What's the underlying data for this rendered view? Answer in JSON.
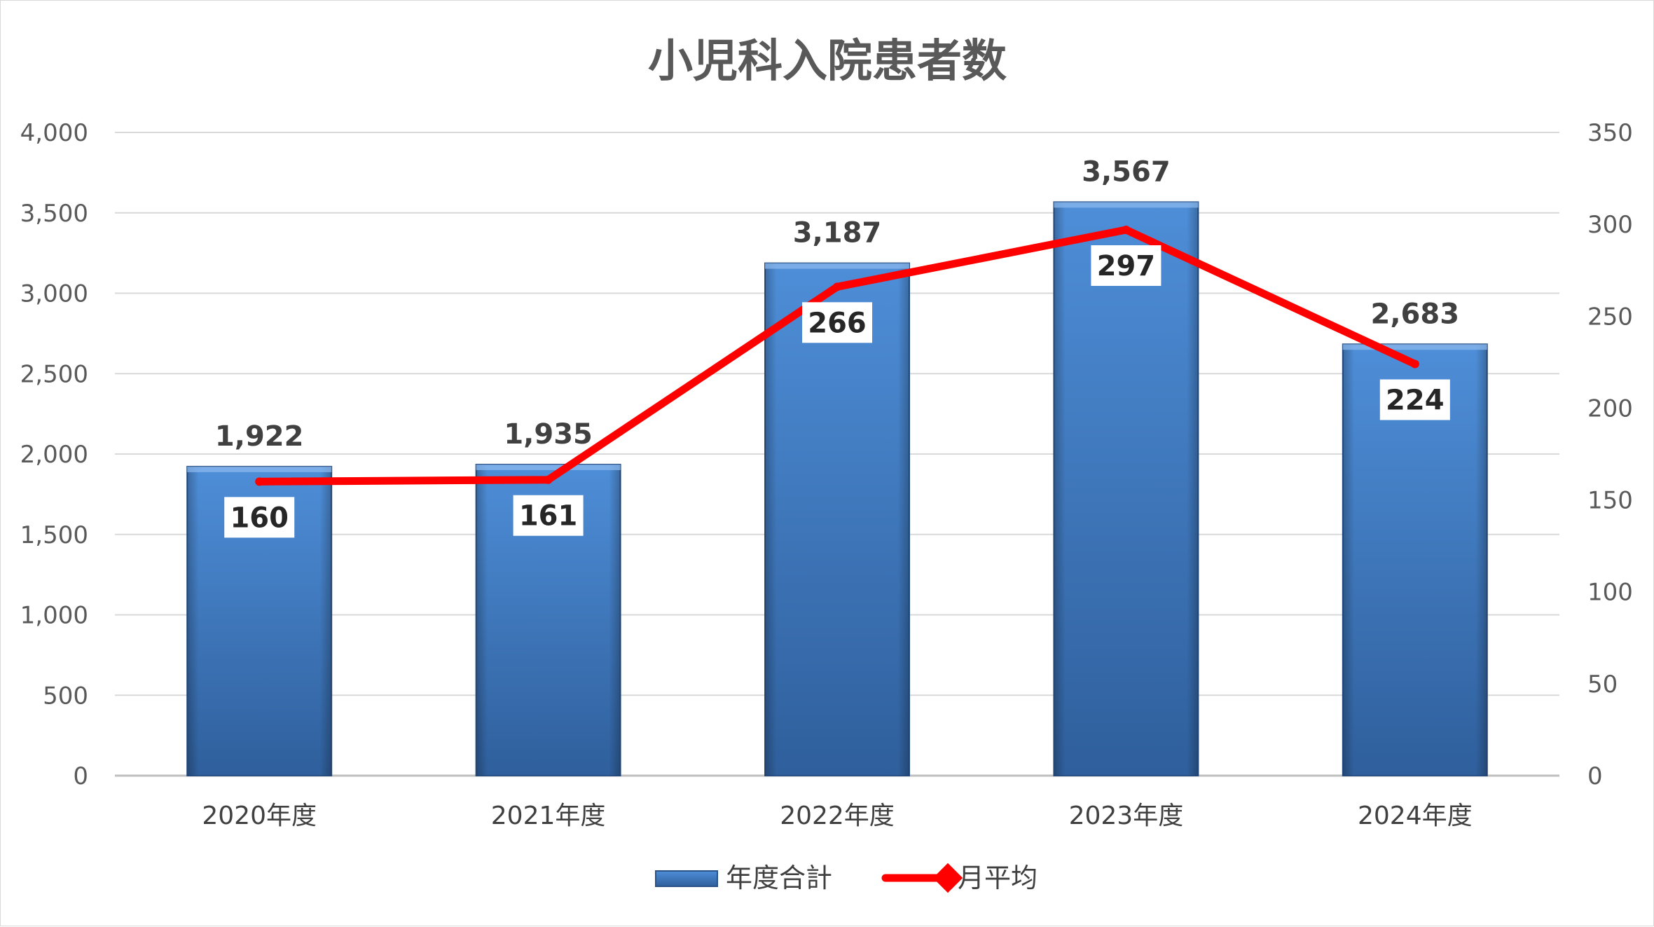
{
  "chart_data": {
    "type": "bar",
    "title": "小児科入院患者数",
    "categories": [
      "2020年度",
      "2021年度",
      "2022年度",
      "2023年度",
      "2024年度"
    ],
    "series": [
      {
        "name": "年度合計",
        "type": "bar",
        "axis": "left",
        "values": [
          1922,
          1935,
          3187,
          3567,
          2683
        ],
        "labels": [
          "1,922",
          "1,935",
          "3,187",
          "3,567",
          "2,683"
        ],
        "color": "#4a86c8"
      },
      {
        "name": "月平均",
        "type": "line",
        "axis": "right",
        "values": [
          160,
          161,
          266,
          297,
          224
        ],
        "labels": [
          "160",
          "161",
          "266",
          "297",
          "224"
        ],
        "color": "#ff0000"
      }
    ],
    "ylim": [
      0,
      4000
    ],
    "y2lim": [
      0,
      350
    ],
    "yticks": [
      "0",
      "500",
      "1,000",
      "1,500",
      "2,000",
      "2,500",
      "3,000",
      "3,500",
      "4,000"
    ],
    "y2ticks": [
      "0",
      "50",
      "100",
      "150",
      "200",
      "250",
      "300",
      "350"
    ],
    "grid": true,
    "legend": "bottom"
  }
}
